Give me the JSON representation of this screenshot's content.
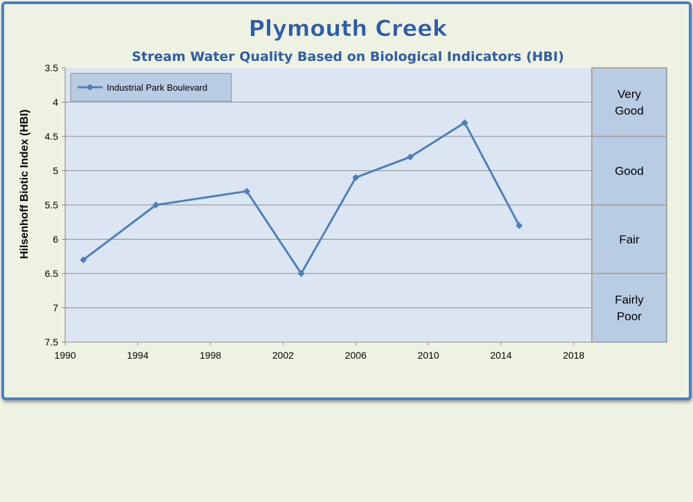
{
  "chart_data": {
    "type": "line",
    "title": "Plymouth Creek",
    "subtitle": "Stream Water Quality Based on Biological Indicators (HBI)",
    "xlabel": "",
    "ylabel": "Hilsenhoff Biotic Index (HBI)",
    "xlim": [
      1990,
      2019
    ],
    "ylim": [
      3.5,
      7.5
    ],
    "y_reversed": true,
    "x_ticks": [
      "1990",
      "1994",
      "1998",
      "2002",
      "2006",
      "2010",
      "2014",
      "2018"
    ],
    "y_ticks": [
      "3.5",
      "4",
      "4.5",
      "5",
      "5.5",
      "6",
      "6.5",
      "7",
      "7.5"
    ],
    "grid": "horizontal",
    "legend": "top-left",
    "series": [
      {
        "name": "Industrial Park Boulevard",
        "color": "#4f7fbb",
        "x": [
          1991,
          1995,
          2000,
          2003,
          2006,
          2009,
          2012,
          2015
        ],
        "y": [
          6.3,
          5.5,
          5.3,
          6.5,
          5.1,
          4.8,
          4.3,
          5.8
        ]
      }
    ],
    "bands": [
      {
        "label_lines": [
          "Very",
          "Good"
        ],
        "from": 3.5,
        "to": 4.5
      },
      {
        "label_lines": [
          "Good"
        ],
        "from": 4.5,
        "to": 5.5
      },
      {
        "label_lines": [
          "Fair"
        ],
        "from": 5.5,
        "to": 6.5
      },
      {
        "label_lines": [
          "Fairly",
          "Poor"
        ],
        "from": 6.5,
        "to": 7.5
      }
    ]
  },
  "colors": {
    "frame": "#4f7fbb",
    "plot_bg": "#dce6f2",
    "band_bg": "#b8cce4",
    "band_border": "#a6a6a6"
  }
}
